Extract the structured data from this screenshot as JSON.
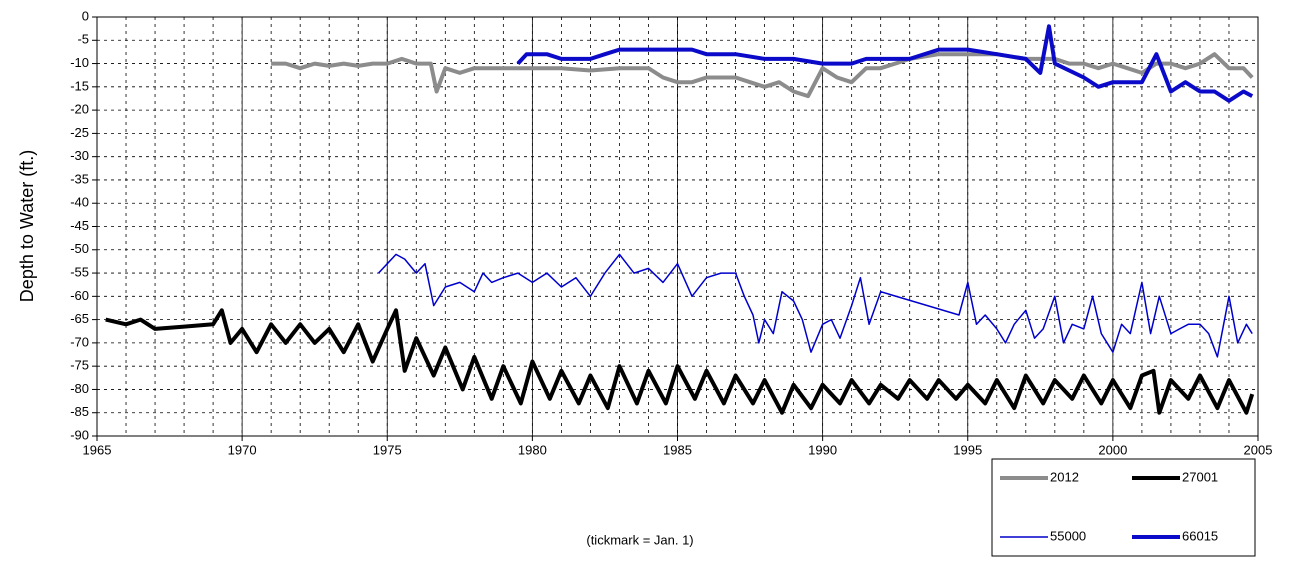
{
  "chart_data": {
    "type": "line",
    "ylabel": "Depth to Water (ft.)",
    "annotation": "(tickmark = Jan. 1)",
    "xlim": [
      1965,
      2005
    ],
    "xticks": [
      1965,
      1970,
      1975,
      1980,
      1985,
      1990,
      1995,
      2000,
      2005
    ],
    "ylim": [
      -90,
      0
    ],
    "yticks": [
      0,
      -5,
      -10,
      -15,
      -20,
      -25,
      -30,
      -35,
      -40,
      -45,
      -50,
      -55,
      -60,
      -65,
      -70,
      -75,
      -80,
      -85,
      -90
    ],
    "grid": true,
    "legend": "bottom-right",
    "series": [
      {
        "name": "2012",
        "color": "#8c8c8c",
        "width": 4,
        "x": [
          1971,
          1971.5,
          1972,
          1972.5,
          1973,
          1973.5,
          1974,
          1974.5,
          1975,
          1975.5,
          1976,
          1976.5,
          1976.7,
          1977,
          1977.5,
          1978,
          1978.5,
          1979,
          1979.5,
          1980,
          1981,
          1982,
          1983,
          1984,
          1984.5,
          1985,
          1985.5,
          1986,
          1986.5,
          1987,
          1987.5,
          1988,
          1988.5,
          1989,
          1989.5,
          1990,
          1990.5,
          1991,
          1991.5,
          1992,
          1992.5,
          1993,
          1994,
          1995,
          1996,
          1997,
          1998,
          1998.5,
          1999,
          1999.5,
          2000,
          2000.5,
          2001,
          2001.5,
          2002,
          2002.5,
          2003,
          2003.5,
          2004,
          2004.5,
          2004.8
        ],
        "values": [
          -10,
          -10,
          -11,
          -10,
          -10.5,
          -10,
          -10.5,
          -10,
          -10,
          -9,
          -10,
          -10,
          -16,
          -11,
          -12,
          -11,
          -11,
          -11,
          -11,
          -11,
          -11,
          -11.5,
          -11,
          -11,
          -13,
          -14,
          -14,
          -13,
          -13,
          -13,
          -14,
          -15,
          -14,
          -16,
          -17,
          -11,
          -13,
          -14,
          -11,
          -11,
          -10,
          -9,
          -8,
          -8,
          -8,
          -9,
          -9,
          -10,
          -10,
          -11,
          -10,
          -11,
          -12,
          -10,
          -10,
          -11,
          -10,
          -8,
          -11,
          -11,
          -13
        ]
      },
      {
        "name": "27001",
        "color": "#000000",
        "width": 4,
        "x": [
          1965.3,
          1966,
          1966.5,
          1967,
          1968,
          1969,
          1969.3,
          1969.6,
          1970,
          1970.5,
          1971,
          1971.5,
          1972,
          1972.5,
          1973,
          1973.5,
          1974,
          1974.5,
          1975,
          1975.3,
          1975.6,
          1976,
          1976.6,
          1977,
          1977.6,
          1978,
          1978.6,
          1979,
          1979.6,
          1980,
          1980.6,
          1981,
          1981.6,
          1982,
          1982.6,
          1983,
          1983.6,
          1984,
          1984.6,
          1985,
          1985.6,
          1986,
          1986.6,
          1987,
          1987.6,
          1988,
          1988.6,
          1989,
          1989.6,
          1990,
          1990.6,
          1991,
          1991.6,
          1992,
          1992.6,
          1993,
          1993.6,
          1994,
          1994.6,
          1995,
          1995.6,
          1996,
          1996.6,
          1997,
          1997.6,
          1998,
          1998.6,
          1999,
          1999.6,
          2000,
          2000.6,
          2001,
          2001.4,
          2001.6,
          2002,
          2002.6,
          2003,
          2003.6,
          2004,
          2004.6,
          2004.8
        ],
        "values": [
          -65,
          -66,
          -65,
          -67,
          -66.5,
          -66,
          -63,
          -70,
          -67,
          -72,
          -66,
          -70,
          -66,
          -70,
          -67,
          -72,
          -66,
          -74,
          -67,
          -63,
          -76,
          -69,
          -77,
          -71,
          -80,
          -73,
          -82,
          -75,
          -83,
          -74,
          -82,
          -76,
          -83,
          -77,
          -84,
          -75,
          -83,
          -76,
          -83,
          -75,
          -82,
          -76,
          -83,
          -77,
          -83,
          -78,
          -85,
          -79,
          -84,
          -79,
          -83,
          -78,
          -83,
          -79,
          -82,
          -78,
          -82,
          -78,
          -82,
          -79,
          -83,
          -78,
          -84,
          -77,
          -83,
          -78,
          -82,
          -77,
          -83,
          -78,
          -84,
          -77,
          -76,
          -85,
          -78,
          -82,
          -77,
          -84,
          -78,
          -85,
          -81
        ]
      },
      {
        "name": "55000",
        "color": "#0000cc",
        "width": 1.5,
        "x": [
          1974.7,
          1975,
          1975.3,
          1975.6,
          1976,
          1976.3,
          1976.6,
          1977,
          1977.5,
          1978,
          1978.3,
          1978.6,
          1979,
          1979.5,
          1980,
          1980.5,
          1981,
          1981.5,
          1982,
          1982.5,
          1983,
          1983.5,
          1984,
          1984.5,
          1985,
          1985.5,
          1986,
          1986.5,
          1987,
          1987.3,
          1987.6,
          1987.8,
          1988,
          1988.3,
          1988.6,
          1989,
          1989.3,
          1989.6,
          1990,
          1990.3,
          1990.6,
          1991,
          1991.3,
          1991.6,
          1992,
          1994.7,
          1995,
          1995.3,
          1995.6,
          1996,
          1996.3,
          1996.6,
          1997,
          1997.3,
          1997.6,
          1998,
          1998.3,
          1998.6,
          1999,
          1999.3,
          1999.6,
          2000,
          2000.3,
          2000.6,
          2001,
          2001.3,
          2001.6,
          2002,
          2002.3,
          2002.6,
          2003,
          2003.3,
          2003.6,
          2004,
          2004.3,
          2004.6,
          2004.8
        ],
        "values": [
          -55,
          -53,
          -51,
          -52,
          -55,
          -53,
          -62,
          -58,
          -57,
          -59,
          -55,
          -57,
          -56,
          -55,
          -57,
          -55,
          -58,
          -56,
          -60,
          -55,
          -51,
          -55,
          -54,
          -57,
          -53,
          -60,
          -56,
          -55,
          -55,
          -60,
          -64,
          -70,
          -65,
          -68,
          -59,
          -61,
          -65,
          -72,
          -66,
          -65,
          -69,
          -62,
          -56,
          -66,
          -59,
          -64,
          -57,
          -66,
          -64,
          -67,
          -70,
          -66,
          -63,
          -69,
          -67,
          -60,
          -70,
          -66,
          -67,
          -60,
          -68,
          -72,
          -66,
          -68,
          -57,
          -68,
          -60,
          -68,
          -67,
          -66,
          -66,
          -68,
          -73,
          -60,
          -70,
          -66,
          -68
        ]
      },
      {
        "name": "66015",
        "color": "#0a0ac8",
        "width": 4,
        "x": [
          1979.5,
          1979.8,
          1980.5,
          1981,
          1982,
          1982.5,
          1983,
          1984,
          1985,
          1985.5,
          1986,
          1986.5,
          1987,
          1988,
          1989,
          1990,
          1991,
          1991.5,
          1992,
          1993,
          1994,
          1995,
          1996,
          1997,
          1997.5,
          1997.8,
          1998,
          1999,
          1999.5,
          2000,
          2000.5,
          2001,
          2001.5,
          2002,
          2002.5,
          2003,
          2003.5,
          2004,
          2004.5,
          2004.8
        ],
        "values": [
          -10,
          -8,
          -8,
          -9,
          -9,
          -8,
          -7,
          -7,
          -7,
          -7,
          -8,
          -8,
          -8,
          -9,
          -9,
          -10,
          -10,
          -9,
          -9,
          -9,
          -7,
          -7,
          -8,
          -9,
          -12,
          -2,
          -10,
          -13,
          -15,
          -14,
          -14,
          -14,
          -8,
          -16,
          -14,
          -16,
          -16,
          -18,
          -16,
          -17
        ]
      }
    ]
  }
}
